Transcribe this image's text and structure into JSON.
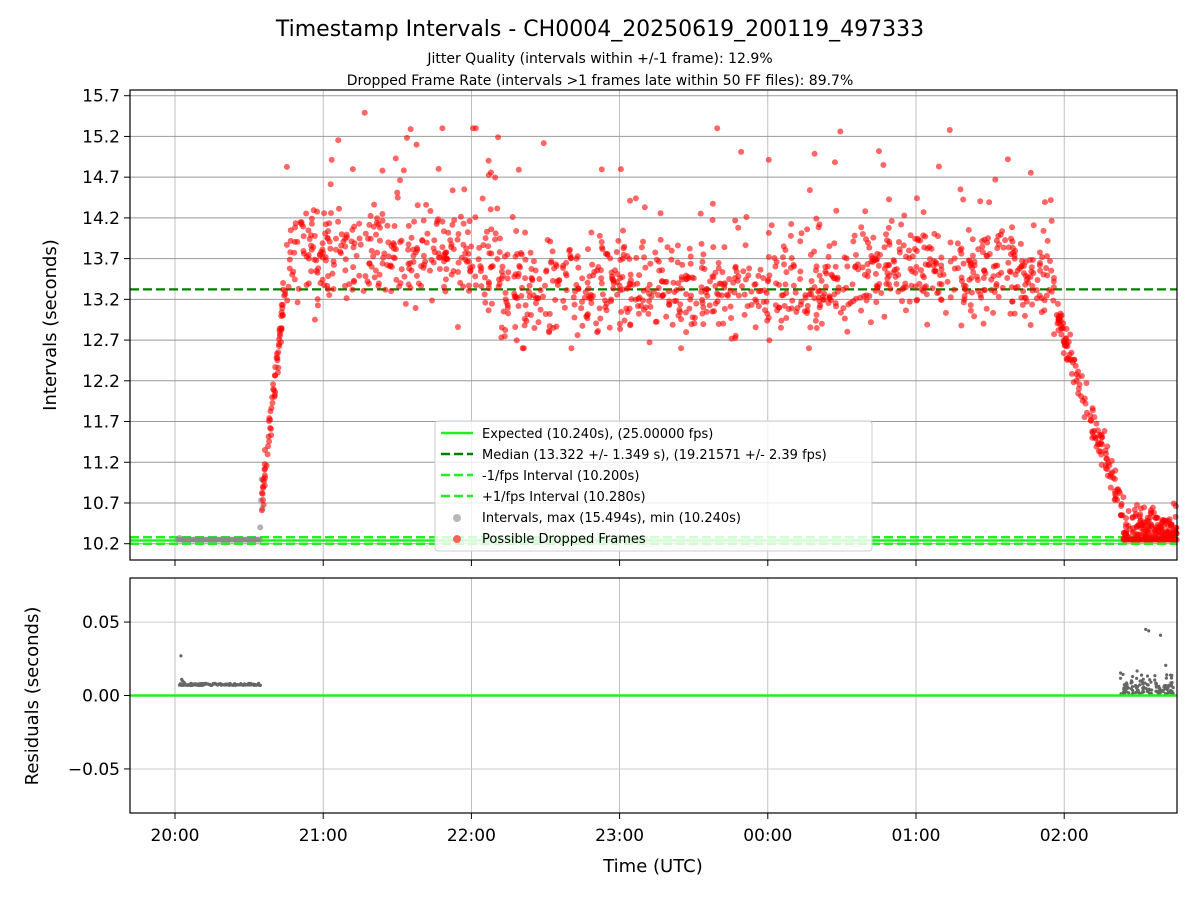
{
  "chart_data": {
    "type": "scatter",
    "title": "Timestamp Intervals - CH0004_20250619_200119_497333",
    "subtitle_1": "Jitter Quality (intervals within +/-1 frame): 12.9%",
    "subtitle_2": "Dropped Frame Rate (intervals >1 frames late within 50 FF files): 89.7%",
    "xlabel": "Time (UTC)",
    "x_ticks": [
      "20:00",
      "21:00",
      "22:00",
      "23:00",
      "00:00",
      "01:00",
      "02:00"
    ],
    "top_panel": {
      "ylabel": "Intervals (seconds)",
      "ylim": [
        10.0,
        15.77
      ],
      "y_ticks": [
        "10.2",
        "10.7",
        "11.2",
        "11.7",
        "12.2",
        "12.7",
        "13.2",
        "13.7",
        "14.2",
        "14.7",
        "15.2",
        "15.7"
      ],
      "expected": 10.24,
      "median": 13.322,
      "minus_fps": 10.2,
      "plus_fps": 10.28,
      "legend": {
        "expected": "Expected (10.240s), (25.00000 fps)",
        "median": "Median (13.322 +/- 1.349 s), (19.21571 +/- 2.39 fps)",
        "minus": "-1/fps Interval (10.200s)",
        "plus": "+1/fps Interval (10.280s)",
        "intervals": "Intervals, max (15.494s), min (10.240s)",
        "dropped": "Possible Dropped Frames"
      },
      "legend_placement": "lower-center"
    },
    "bottom_panel": {
      "ylabel": "Residuals (seconds)",
      "ylim": [
        -0.08,
        0.08
      ],
      "y_ticks": [
        "−0.05",
        "0.00",
        "0.05"
      ]
    },
    "series_colors": {
      "expected": "#22ee22",
      "median": "#008000",
      "fps_bounds": "#22ee22",
      "intervals": "#888888",
      "dropped": "#ff0000",
      "residuals": "#666666"
    },
    "grid": true
  }
}
